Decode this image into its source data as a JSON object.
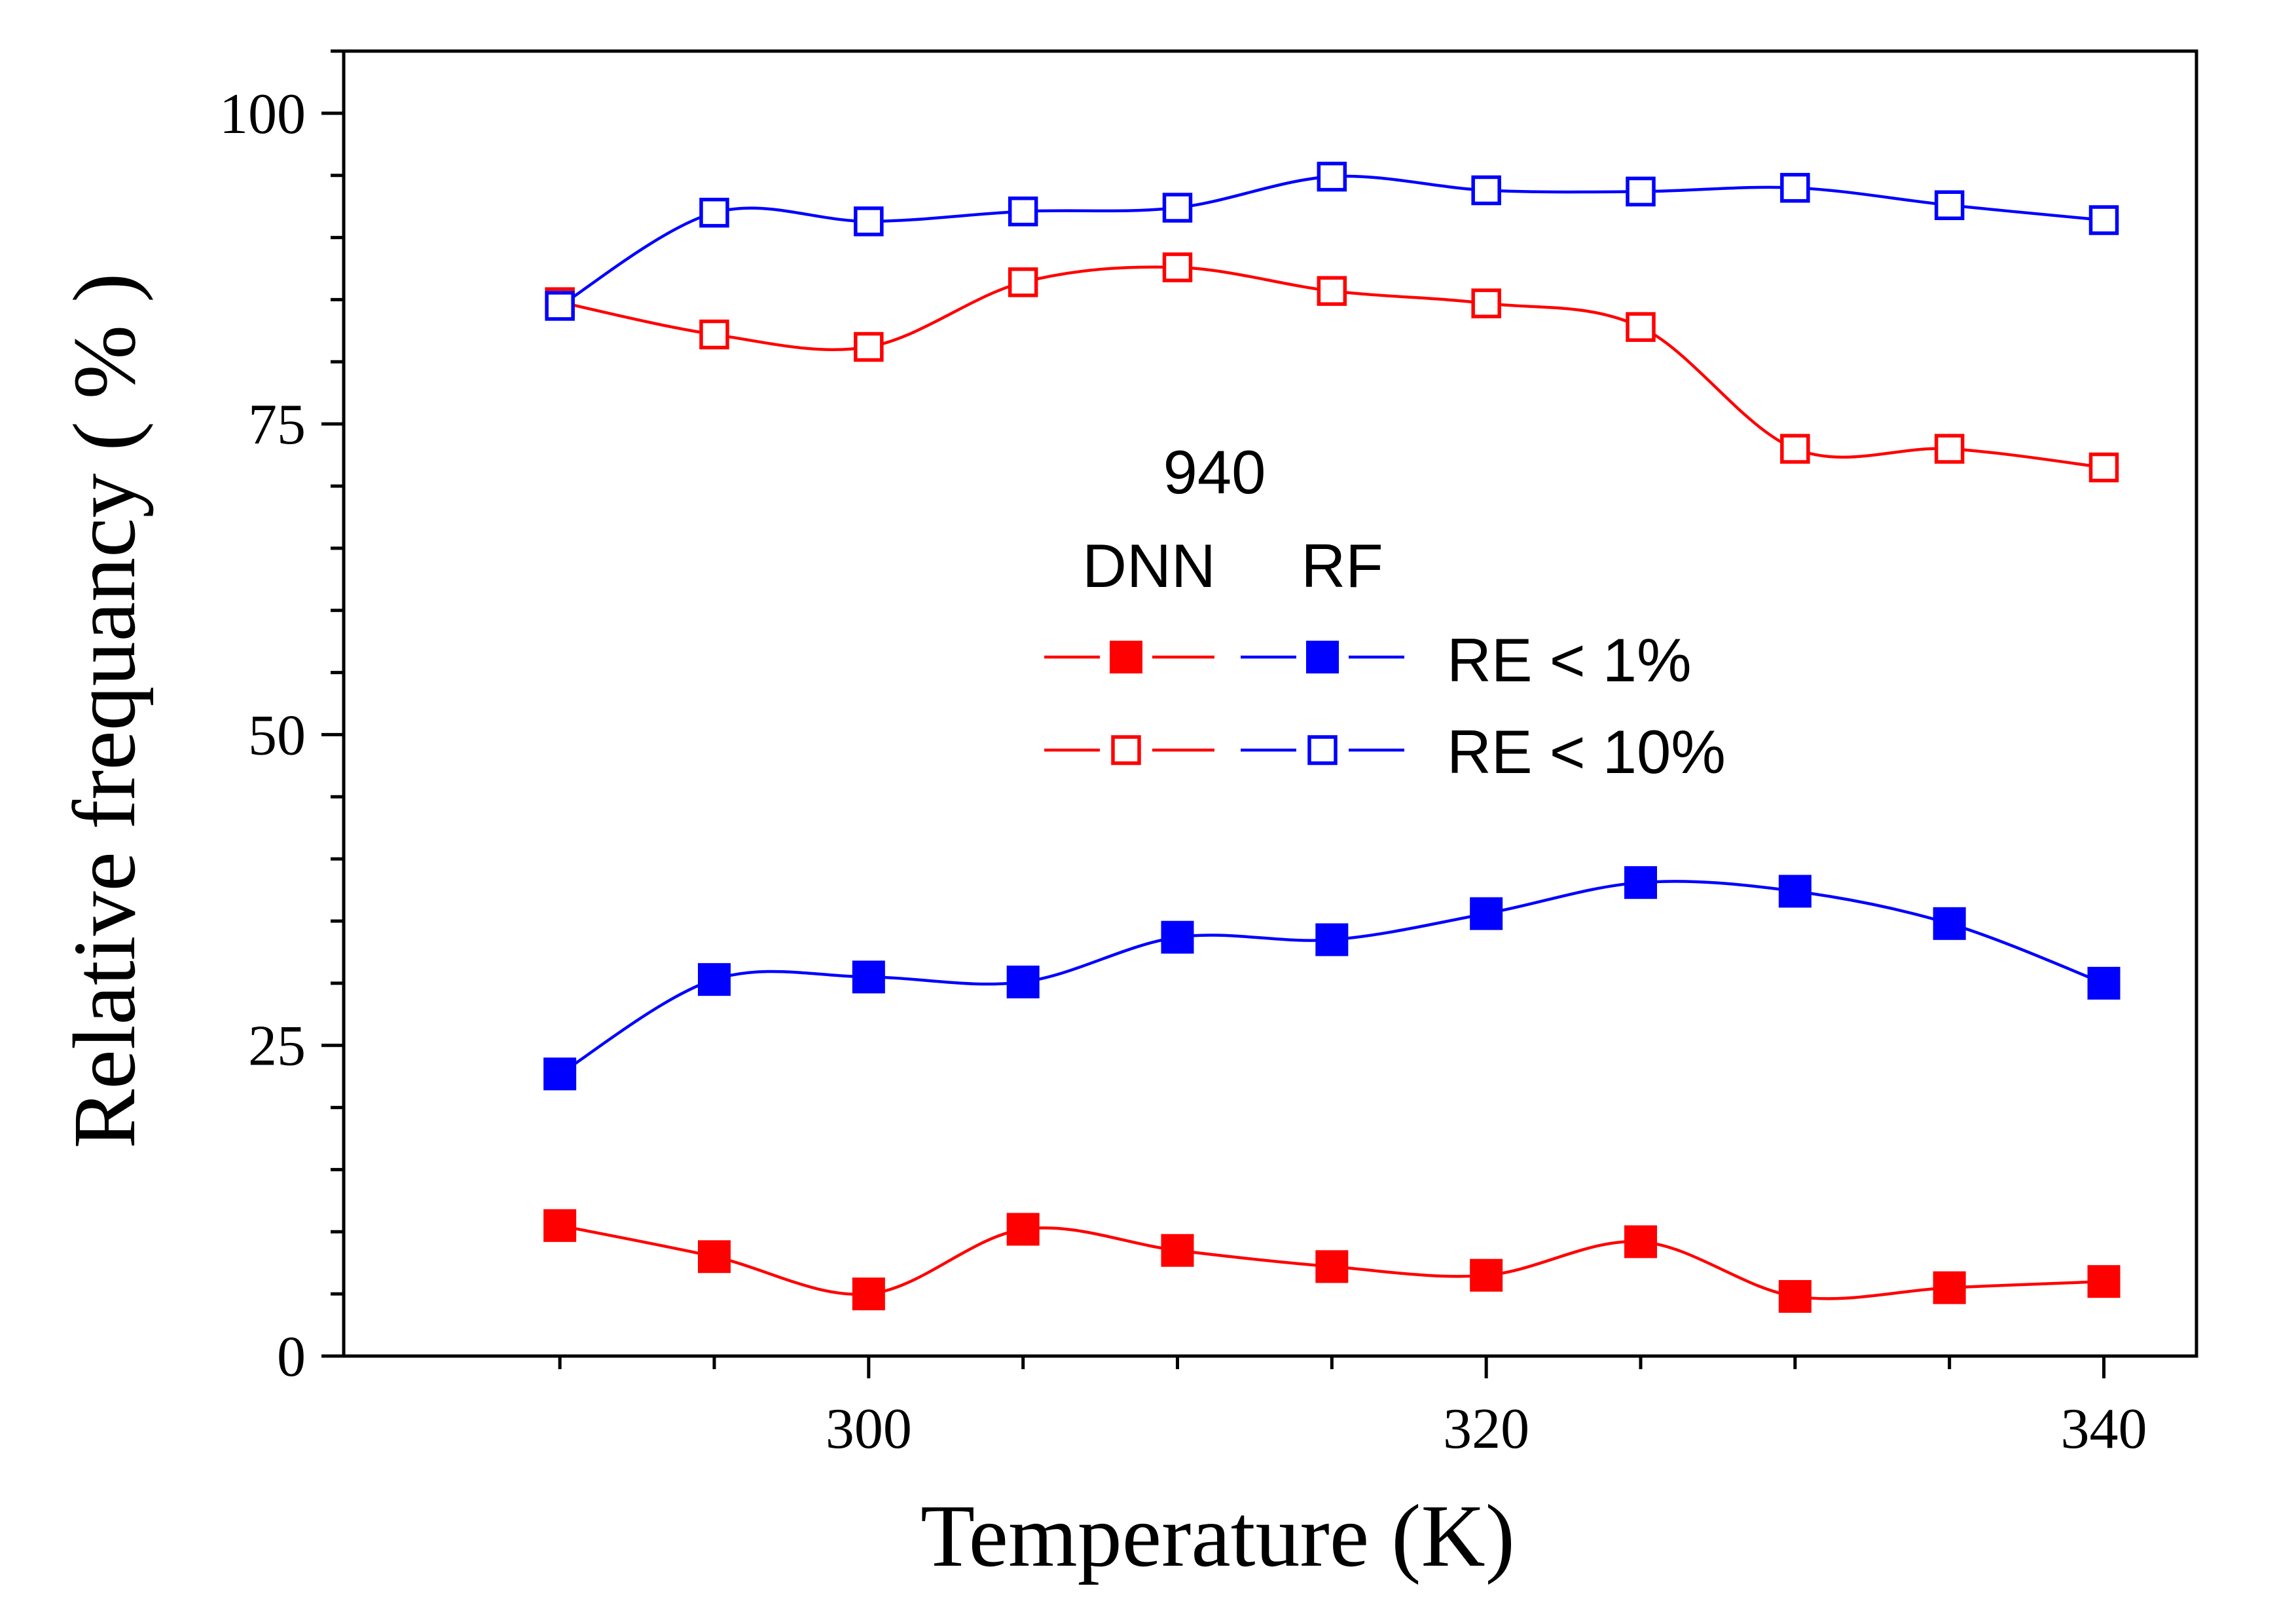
{
  "chart_data": {
    "type": "line",
    "title": "",
    "xlabel": "Temperature (K)",
    "ylabel": "Relative frequancy ( % )",
    "xlim": [
      283,
      343
    ],
    "ylim": [
      0,
      105
    ],
    "x_ticks": [
      300,
      320,
      340
    ],
    "y_ticks": [
      0,
      25,
      50,
      75,
      100
    ],
    "x_tick_labels": [
      "300",
      "320",
      "340"
    ],
    "y_tick_labels": [
      "0",
      "25",
      "50",
      "75",
      "100"
    ],
    "grid": false,
    "legend": {
      "placement": "center",
      "title": "940",
      "column_headers": [
        "DNN",
        "RF"
      ],
      "row_labels": [
        "RE < 1%",
        "RE < 10%"
      ]
    },
    "x": [
      290,
      295,
      300,
      305,
      310,
      315,
      320,
      325,
      330,
      335,
      340
    ],
    "series": [
      {
        "model": "DNN",
        "threshold": "RE < 1%",
        "color": "#ff0000",
        "marker": "filled-square",
        "values": [
          10.5,
          8.0,
          5.0,
          10.2,
          8.5,
          7.2,
          6.5,
          9.2,
          4.8,
          5.5,
          6.0
        ]
      },
      {
        "model": "RF",
        "threshold": "RE < 1%",
        "color": "#0000ff",
        "marker": "filled-square",
        "values": [
          22.7,
          30.3,
          30.5,
          30.1,
          33.7,
          33.5,
          35.6,
          38.1,
          37.4,
          34.8,
          30.0
        ]
      },
      {
        "model": "DNN",
        "threshold": "RE < 10%",
        "color": "#ff0000",
        "marker": "open-square",
        "values": [
          84.8,
          82.2,
          81.2,
          86.4,
          87.6,
          85.7,
          84.7,
          82.8,
          73.0,
          73.0,
          71.5
        ]
      },
      {
        "model": "RF",
        "threshold": "RE < 10%",
        "color": "#0000ff",
        "marker": "open-square",
        "values": [
          84.5,
          92.0,
          91.3,
          92.1,
          92.4,
          94.9,
          93.8,
          93.7,
          94.0,
          92.6,
          91.4
        ]
      }
    ]
  }
}
